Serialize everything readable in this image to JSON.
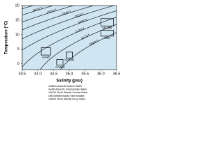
{
  "chart_data": {
    "type": "ts-diagram",
    "xlabel": "Salinity (psu)",
    "ylabel": "Temperature (°C)",
    "xlim": [
      33.5,
      36.5
    ],
    "xticks": [
      33.5,
      {
        "value": 34,
        "label": "34.0"
      },
      34.5,
      {
        "value": 35,
        "label": "35.0"
      },
      35.5,
      {
        "value": 36,
        "label": "36.0"
      },
      36.5
    ],
    "ylim": [
      -2,
      20
    ],
    "yticks": [
      0,
      5,
      10,
      15,
      20
    ],
    "background": "#cfe6f2",
    "line_color": "#000000",
    "contours": [
      {
        "value": 1.024,
        "label": "1.0240"
      },
      {
        "value": 1.0245,
        "label": "1.0245"
      },
      {
        "value": 1.025,
        "label": "1.0250"
      },
      {
        "value": 1.0255,
        "label": "1.0255"
      },
      {
        "value": 1.026,
        "label": "1.0260"
      },
      {
        "value": 1.0265,
        "label": "1.0265"
      },
      {
        "value": 1.027,
        "label": "1.0270"
      },
      {
        "value": 1.0275,
        "label": "1.0275"
      },
      {
        "value": 1.028,
        "label": "1.0280"
      }
    ],
    "water_masses": [
      {
        "name": "NACW",
        "salinity": [
          36.0,
          36.4
        ],
        "temperature": [
          13,
          15.5
        ]
      },
      {
        "name": "MW",
        "salinity": [
          36.0,
          36.4
        ],
        "temperature": [
          9.5,
          11.5
        ]
      },
      {
        "name": "AAIW",
        "salinity": [
          34.1,
          34.4
        ],
        "temperature": [
          3,
          5.5
        ]
      },
      {
        "name": "NADW",
        "salinity": [
          34.9,
          35.1
        ],
        "temperature": [
          2,
          4
        ]
      },
      {
        "name": "AABW",
        "salinity": [
          34.6,
          34.8
        ],
        "temperature": [
          -0.5,
          1.5
        ]
      }
    ],
    "legend": [
      "AABW Antarctic Bottom Water",
      "AAIW Antarctic Intermediate Water",
      "NACW North Atlantic Central Water",
      "MW Mediterranean Intermediate",
      "NADW North Atlantic Deep Water"
    ]
  }
}
